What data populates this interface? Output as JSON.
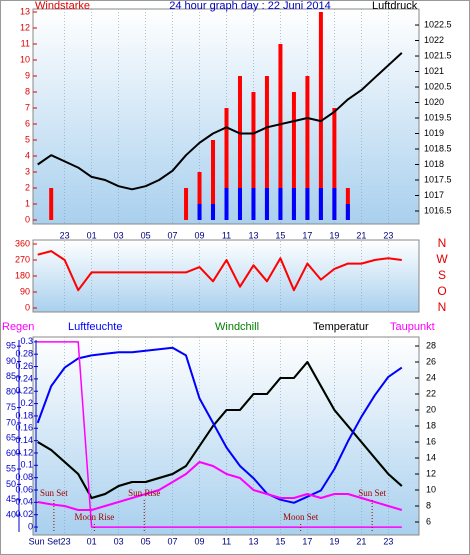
{
  "chart_data": [
    {
      "type": "combo",
      "title": "24 hour graph day : 22 Juni 2014",
      "ylabel": "Windstarke",
      "y2label": "Luftdruck",
      "x": [
        21,
        22,
        23,
        24,
        25,
        26,
        27,
        28,
        29,
        30,
        31,
        32,
        33,
        34,
        35,
        36,
        37,
        38,
        39,
        40,
        41,
        42,
        43,
        44,
        45,
        46,
        47,
        48
      ],
      "xlim": [
        20.8,
        49.2
      ],
      "xticks": [
        23,
        {
          "value": 25,
          "label": "01"
        },
        {
          "value": 27,
          "label": "03"
        },
        {
          "value": 29,
          "label": "05"
        },
        {
          "value": 31,
          "label": "07"
        },
        {
          "value": 33,
          "label": "09"
        },
        {
          "value": 35,
          "label": "11"
        },
        {
          "value": 37,
          "label": "13"
        },
        {
          "value": 39,
          "label": "15"
        },
        {
          "value": 41,
          "label": "17"
        },
        {
          "value": 43,
          "label": "19"
        },
        {
          "value": 45,
          "label": "21"
        },
        {
          "value": 47,
          "label": "23"
        }
      ],
      "ylim": [
        0,
        13
      ],
      "yticks": [
        0,
        1,
        2,
        3,
        4,
        5,
        6,
        7,
        8,
        9,
        10,
        11,
        12,
        13
      ],
      "y2lim": [
        1016.21,
        1022.92
      ],
      "y2ticks": [
        1016.5,
        1017,
        1017.5,
        1018,
        1018.5,
        1019,
        1019.5,
        1020,
        1020.5,
        1021,
        1021.5,
        1022,
        1022.5
      ],
      "grid": true,
      "series": [
        {
          "type": "bar",
          "color": "#ff0000",
          "values": [
            0,
            2,
            0,
            0,
            0,
            0,
            0,
            0,
            0,
            0,
            0,
            2,
            3,
            5,
            7,
            9,
            8,
            9,
            11,
            8,
            9,
            13,
            7,
            2,
            0,
            0,
            0,
            0
          ]
        },
        {
          "type": "bar",
          "color": "#0000ff",
          "values": [
            0,
            0,
            0,
            0,
            0,
            0,
            0,
            0,
            0,
            0,
            0,
            0,
            1,
            1,
            2,
            2,
            2,
            2,
            2,
            2,
            2,
            2,
            2,
            1,
            0,
            0,
            0,
            0
          ]
        },
        {
          "type": "line",
          "axis": "y2",
          "color": "#000000",
          "values": [
            1018.0,
            1018.3,
            1018.1,
            1017.9,
            1017.6,
            1017.5,
            1017.3,
            1017.2,
            1017.3,
            1017.5,
            1017.8,
            1018.3,
            1018.7,
            1019.0,
            1019.2,
            1019.0,
            1019.0,
            1019.2,
            1019.3,
            1019.4,
            1019.5,
            1019.4,
            1019.7,
            1020.1,
            1020.4,
            1020.8,
            1021.2,
            1021.6
          ]
        }
      ]
    },
    {
      "type": "line",
      "x": [
        21,
        22,
        23,
        24,
        25,
        26,
        27,
        28,
        29,
        30,
        31,
        32,
        33,
        34,
        35,
        36,
        37,
        38,
        39,
        40,
        41,
        42,
        43,
        44,
        45,
        46,
        47,
        48
      ],
      "xlim": [
        20.8,
        49.2
      ],
      "ylim": [
        0,
        360
      ],
      "yticks": [
        0,
        90,
        180,
        270,
        360
      ],
      "y2lim": [
        0,
        360
      ],
      "y2ticks": [
        {
          "value": 0,
          "label": "N"
        },
        {
          "value": 90,
          "label": "O"
        },
        {
          "value": 180,
          "label": "S"
        },
        {
          "value": 270,
          "label": "W"
        },
        {
          "value": 360,
          "label": "N"
        }
      ],
      "series": [
        {
          "type": "line",
          "color": "#ff0000",
          "values": [
            300,
            320,
            270,
            100,
            200,
            200,
            200,
            200,
            200,
            200,
            200,
            200,
            230,
            150,
            270,
            120,
            240,
            150,
            280,
            100,
            250,
            160,
            220,
            250,
            250,
            270,
            280,
            270
          ]
        }
      ]
    },
    {
      "type": "combo",
      "x": [
        21,
        22,
        23,
        24,
        25,
        26,
        27,
        28,
        29,
        30,
        31,
        32,
        33,
        34,
        35,
        36,
        37,
        38,
        39,
        40,
        41,
        42,
        43,
        44,
        45,
        46,
        47,
        48
      ],
      "xlim": [
        20.8,
        49.2
      ],
      "xticks": [
        {
          "value": 23,
          "label": "Sun Set23"
        },
        {
          "value": 25,
          "label": "01"
        },
        {
          "value": 27,
          "label": "03"
        },
        {
          "value": 29,
          "label": "05"
        },
        {
          "value": 31,
          "label": "07"
        },
        {
          "value": 33,
          "label": "09"
        },
        {
          "value": 35,
          "label": "11"
        },
        {
          "value": 37,
          "label": "13"
        },
        {
          "value": 39,
          "label": "15"
        },
        {
          "value": 41,
          "label": "17"
        },
        {
          "value": 43,
          "label": "19"
        },
        {
          "value": 45,
          "label": "21"
        },
        {
          "value": 47,
          "label": "23"
        }
      ],
      "ylim": [
        34.5,
        97
      ],
      "yticks": [
        40,
        45,
        50,
        55,
        60,
        65,
        70,
        75,
        80,
        85,
        90,
        95
      ],
      "y2lim": [
        4.75,
        28.75
      ],
      "y2ticks": [
        6,
        8,
        10,
        12,
        14,
        16,
        18,
        20,
        22,
        24,
        26,
        28
      ],
      "y3lim": [
        -0.008,
        0.303
      ],
      "y3ticks": [
        0,
        0.02,
        0.04,
        0.06,
        0.08,
        0.1,
        0.12,
        0.14,
        0.16,
        0.18,
        0.2,
        0.22,
        0.24,
        0.26,
        0.28,
        0.3
      ],
      "series": [
        {
          "name": "Regen",
          "type": "line",
          "axis": "y3",
          "color": "#ff00ff",
          "values": [
            0.3,
            0.3,
            0.3,
            0.3,
            0,
            0,
            0,
            0,
            0,
            0,
            0,
            0,
            0,
            0,
            0,
            0,
            0,
            0,
            0,
            0,
            0,
            0,
            0,
            0,
            0,
            0,
            0,
            0
          ]
        },
        {
          "name": "Luftfeuchte",
          "type": "line",
          "axis": "y",
          "color": "#0000ff",
          "values": [
            70,
            82,
            88,
            91,
            92,
            92.5,
            93,
            93,
            93.5,
            94,
            94.5,
            92,
            78,
            70,
            62,
            56,
            52,
            47,
            45,
            44,
            46,
            48,
            55,
            64,
            72,
            79,
            85,
            88
          ]
        },
        {
          "name": "Windchill",
          "type": "line",
          "axis": "y2",
          "color": "#008000",
          "values": [
            16,
            15,
            13.5,
            12,
            9,
            9.5,
            10.5,
            11,
            11,
            11.5,
            12,
            13,
            15.5,
            18,
            20,
            20,
            22,
            22,
            24,
            24,
            26,
            23,
            20,
            18,
            16,
            14,
            12,
            10.5
          ]
        },
        {
          "name": "Temperatur",
          "type": "line",
          "axis": "y2",
          "color": "#000000",
          "values": [
            16,
            15,
            13.5,
            12,
            9,
            9.5,
            10.5,
            11,
            11,
            11.5,
            12,
            13,
            15.5,
            18,
            20,
            20,
            22,
            22,
            24,
            24,
            26,
            23,
            20,
            18,
            16,
            14,
            12,
            10.5
          ]
        },
        {
          "name": "Taupunkt",
          "type": "line",
          "axis": "y2",
          "color": "#ff00ff",
          "values": [
            8.5,
            8.2,
            8,
            7.5,
            7.5,
            8,
            8.5,
            9,
            9.5,
            10,
            11,
            12,
            13.5,
            13,
            12,
            11.5,
            10,
            9.5,
            9,
            9,
            9.5,
            9,
            9.5,
            9.5,
            9,
            8.5,
            8,
            7.5
          ]
        }
      ],
      "events": [
        {
          "label": "Sun Set",
          "x": 22.2
        },
        {
          "label": "Moon Rise",
          "x": 25.2
        },
        {
          "label": "Sun Rise",
          "x": 28.9
        },
        {
          "label": "Moon Set",
          "x": 40.5
        },
        {
          "label": "Sun Set",
          "x": 45.8
        }
      ]
    }
  ]
}
